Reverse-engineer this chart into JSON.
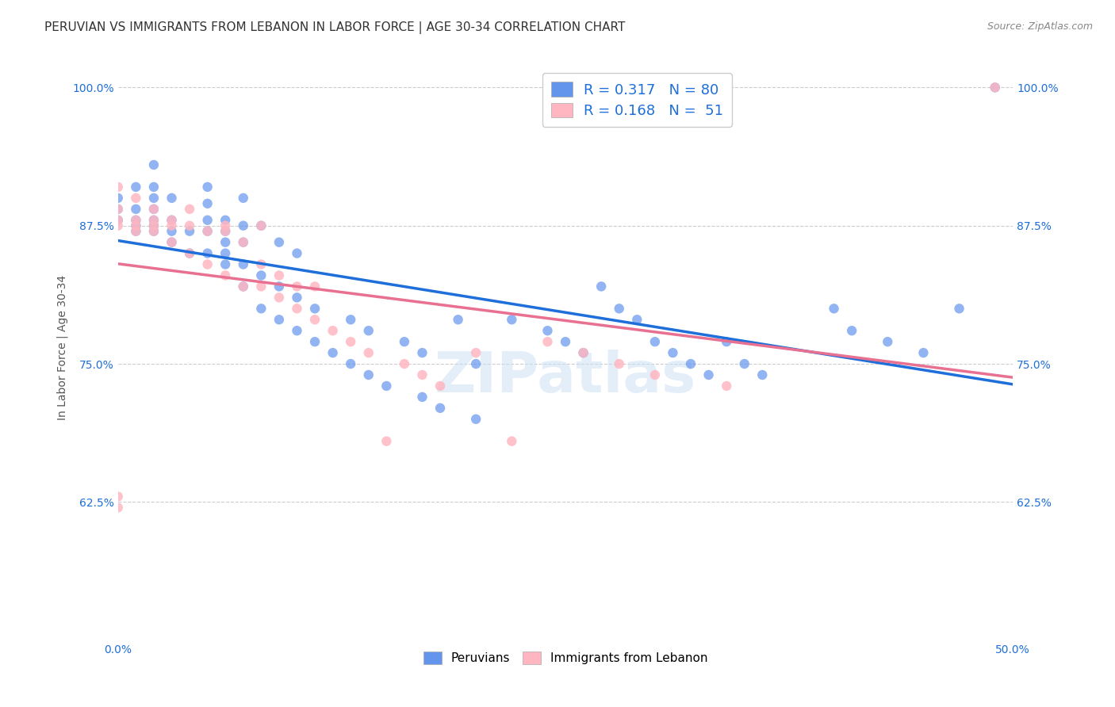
{
  "title": "PERUVIAN VS IMMIGRANTS FROM LEBANON IN LABOR FORCE | AGE 30-34 CORRELATION CHART",
  "source": "Source: ZipAtlas.com",
  "xlabel": "",
  "ylabel": "In Labor Force | Age 30-34",
  "xlim": [
    0.0,
    0.5
  ],
  "ylim": [
    0.5,
    1.03
  ],
  "xticks": [
    0.0,
    0.1,
    0.2,
    0.3,
    0.4,
    0.5
  ],
  "xticklabels": [
    "0.0%",
    "",
    "",
    "",
    "",
    "50.0%"
  ],
  "yticks": [
    0.625,
    0.75,
    0.875,
    1.0
  ],
  "yticklabels": [
    "62.5%",
    "75.0%",
    "87.5%",
    "100.0%"
  ],
  "blue_R": 0.317,
  "blue_N": 80,
  "pink_R": 0.168,
  "pink_N": 51,
  "watermark": "ZIPatlas",
  "blue_color": "#6495ED",
  "pink_color": "#FFB6C1",
  "blue_line_color": "#1E6FD9",
  "pink_line_color": "#E87090",
  "legend_R_color": "#333333",
  "legend_N_color": "#1E6FD9",
  "blue_scatter_x": [
    0.0,
    0.0,
    0.0,
    0.01,
    0.01,
    0.01,
    0.01,
    0.01,
    0.02,
    0.02,
    0.02,
    0.02,
    0.02,
    0.02,
    0.02,
    0.03,
    0.03,
    0.03,
    0.03,
    0.04,
    0.04,
    0.05,
    0.05,
    0.05,
    0.05,
    0.05,
    0.06,
    0.06,
    0.06,
    0.06,
    0.06,
    0.07,
    0.07,
    0.07,
    0.07,
    0.07,
    0.08,
    0.08,
    0.08,
    0.09,
    0.09,
    0.09,
    0.1,
    0.1,
    0.1,
    0.11,
    0.11,
    0.12,
    0.13,
    0.13,
    0.14,
    0.14,
    0.15,
    0.16,
    0.17,
    0.17,
    0.18,
    0.19,
    0.2,
    0.2,
    0.22,
    0.24,
    0.25,
    0.26,
    0.27,
    0.28,
    0.29,
    0.3,
    0.31,
    0.32,
    0.33,
    0.34,
    0.35,
    0.36,
    0.4,
    0.41,
    0.43,
    0.45,
    0.47,
    0.49
  ],
  "blue_scatter_y": [
    0.88,
    0.89,
    0.9,
    0.87,
    0.88,
    0.89,
    0.875,
    0.91,
    0.87,
    0.875,
    0.88,
    0.89,
    0.9,
    0.91,
    0.93,
    0.86,
    0.87,
    0.88,
    0.9,
    0.85,
    0.87,
    0.85,
    0.87,
    0.88,
    0.895,
    0.91,
    0.84,
    0.85,
    0.86,
    0.87,
    0.88,
    0.82,
    0.84,
    0.86,
    0.875,
    0.9,
    0.8,
    0.83,
    0.875,
    0.79,
    0.82,
    0.86,
    0.78,
    0.81,
    0.85,
    0.77,
    0.8,
    0.76,
    0.75,
    0.79,
    0.74,
    0.78,
    0.73,
    0.77,
    0.72,
    0.76,
    0.71,
    0.79,
    0.7,
    0.75,
    0.79,
    0.78,
    0.77,
    0.76,
    0.82,
    0.8,
    0.79,
    0.77,
    0.76,
    0.75,
    0.74,
    0.77,
    0.75,
    0.74,
    0.8,
    0.78,
    0.77,
    0.76,
    0.8,
    1.0
  ],
  "pink_scatter_x": [
    0.0,
    0.0,
    0.0,
    0.0,
    0.0,
    0.0,
    0.01,
    0.01,
    0.01,
    0.01,
    0.02,
    0.02,
    0.02,
    0.02,
    0.03,
    0.03,
    0.03,
    0.04,
    0.04,
    0.04,
    0.05,
    0.05,
    0.06,
    0.06,
    0.06,
    0.07,
    0.07,
    0.08,
    0.08,
    0.08,
    0.09,
    0.09,
    0.1,
    0.1,
    0.11,
    0.11,
    0.12,
    0.13,
    0.14,
    0.15,
    0.16,
    0.17,
    0.18,
    0.2,
    0.22,
    0.24,
    0.26,
    0.28,
    0.3,
    0.34,
    0.49
  ],
  "pink_scatter_y": [
    0.62,
    0.63,
    0.875,
    0.88,
    0.89,
    0.91,
    0.87,
    0.875,
    0.88,
    0.9,
    0.87,
    0.875,
    0.88,
    0.89,
    0.86,
    0.875,
    0.88,
    0.85,
    0.875,
    0.89,
    0.84,
    0.87,
    0.83,
    0.87,
    0.875,
    0.82,
    0.86,
    0.82,
    0.84,
    0.875,
    0.81,
    0.83,
    0.8,
    0.82,
    0.79,
    0.82,
    0.78,
    0.77,
    0.76,
    0.68,
    0.75,
    0.74,
    0.73,
    0.76,
    0.68,
    0.77,
    0.76,
    0.75,
    0.74,
    0.73,
    1.0
  ],
  "grid_color": "#cccccc",
  "title_fontsize": 11,
  "axis_label_fontsize": 10,
  "tick_fontsize": 10,
  "legend_fontsize": 13
}
